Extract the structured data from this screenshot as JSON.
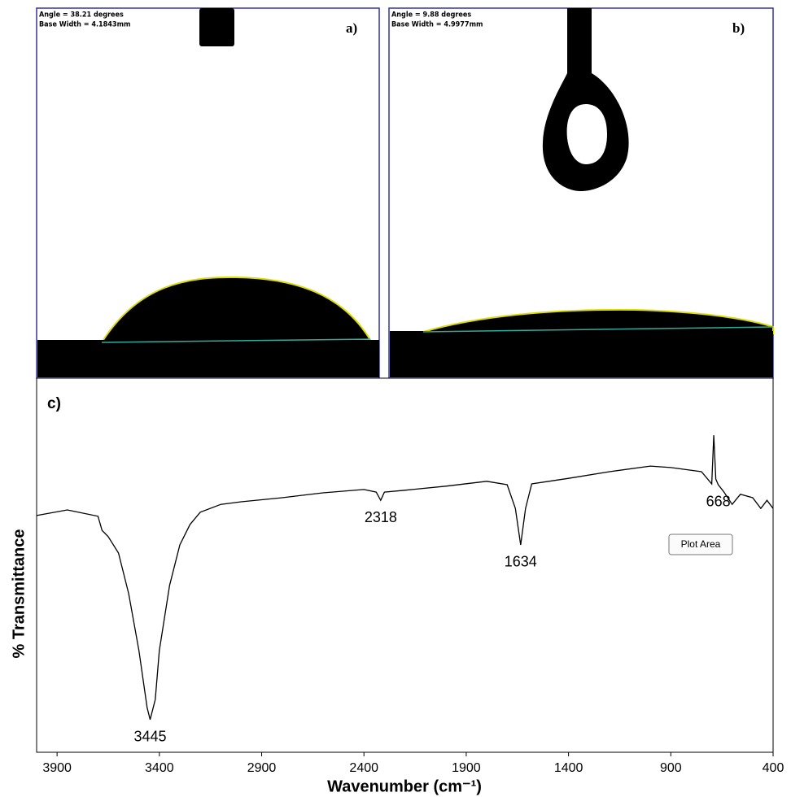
{
  "panels": [
    {
      "label": "a)",
      "angle": "Angle = 38.21 degrees",
      "base_width": "Base Width = 4.1843mm"
    },
    {
      "label": "b)",
      "angle": "Angle = 9.88 degrees",
      "base_width": "Base Width = 4.9977mm"
    }
  ],
  "chart_data": {
    "type": "line",
    "panel_label": "c)",
    "xlabel": "Wavenumber (cm⁻¹)",
    "ylabel": "% Transmittance",
    "x": [
      4000,
      3850,
      3700,
      3680,
      3650,
      3600,
      3550,
      3500,
      3460,
      3445,
      3420,
      3400,
      3350,
      3300,
      3250,
      3200,
      3100,
      3000,
      2800,
      2600,
      2400,
      2340,
      2318,
      2300,
      2200,
      2000,
      1800,
      1700,
      1660,
      1634,
      1610,
      1580,
      1400,
      1200,
      1000,
      900,
      750,
      700,
      690,
      680,
      668,
      640,
      600,
      560,
      500,
      460,
      430,
      400
    ],
    "values": [
      63.7,
      65.2,
      63.5,
      59.7,
      58.0,
      53.6,
      42.7,
      27.4,
      12.0,
      8.8,
      14.2,
      27.4,
      44.9,
      55.8,
      61.3,
      64.6,
      66.7,
      67.4,
      68.5,
      69.8,
      70.7,
      70.0,
      67.8,
      70.0,
      70.5,
      71.6,
      72.9,
      72.0,
      65.6,
      55.8,
      65.6,
      72.2,
      73.7,
      75.5,
      77.0,
      76.6,
      75.5,
      72.2,
      85.3,
      73.5,
      72.0,
      70.0,
      66.7,
      69.4,
      68.5,
      65.6,
      67.8,
      65.6
    ],
    "color": "#000000",
    "peaks": [
      3445,
      2318,
      1634,
      668
    ],
    "xlim": [
      4000,
      400
    ],
    "xticks": [
      3900,
      3400,
      2900,
      2400,
      1900,
      1400,
      900,
      400
    ],
    "ylim": [
      0,
      100
    ],
    "tooltip": "Plot Area"
  }
}
